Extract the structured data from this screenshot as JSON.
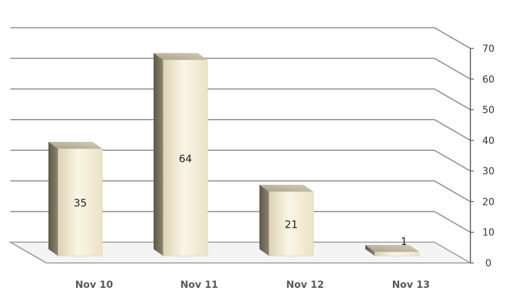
{
  "chart_data": {
    "type": "bar",
    "categories": [
      "Nov 10",
      "Nov 11",
      "Nov 12",
      "Nov 13"
    ],
    "values": [
      35,
      64,
      21,
      1
    ],
    "data_labels": [
      "35",
      "64",
      "21",
      "1"
    ],
    "yticks": [
      0,
      10,
      20,
      30,
      40,
      50,
      60,
      70
    ],
    "ylim": [
      0,
      70
    ],
    "axis_position": "right",
    "grid": true,
    "style": "3d-column",
    "colors": {
      "bar_front": "#f3ead2",
      "bar_side": "#6f6857",
      "bar_top": "#bdb4a0",
      "grid": "#8c8c8c",
      "floor": "#9a9a9a"
    }
  }
}
